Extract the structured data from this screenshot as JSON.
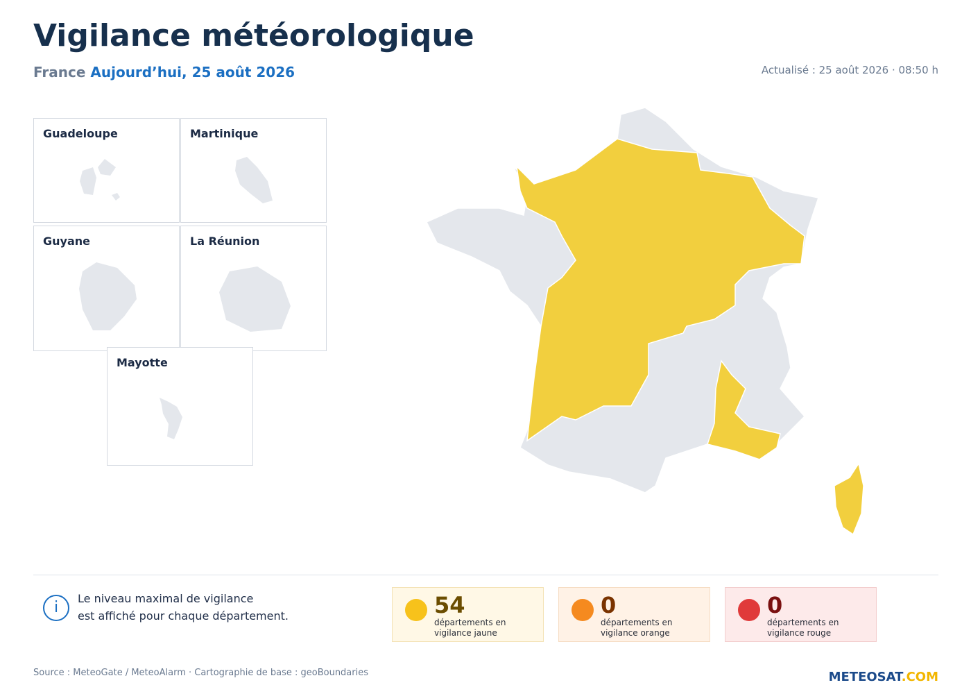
{
  "header": {
    "title": "Vigilance météorologique",
    "country": "France",
    "date": "Aujourd’hui, 25 août 2026",
    "updated": "Actualisé : 25 août 2026 · 08:50 h"
  },
  "insets": [
    "Guadeloupe",
    "Martinique",
    "Guyane",
    "La Réunion",
    "Mayotte"
  ],
  "info": [
    "Le niveau maximal de vigilance",
    "est affiché pour chaque département."
  ],
  "stats": [
    {
      "count": 54,
      "line1": "départements en",
      "line2": "vigilance jaune"
    },
    {
      "count": 0,
      "line1": "départements en",
      "line2": "vigilance orange"
    },
    {
      "count": 0,
      "line1": "départements en",
      "line2": "vigilance rouge"
    }
  ],
  "footer": {
    "source": "Source : MeteoGate / MeteoAlarm · Cartographie de base : geoBoundaries",
    "logo": "METEOSAT",
    "logo_suffix": ".COM"
  }
}
